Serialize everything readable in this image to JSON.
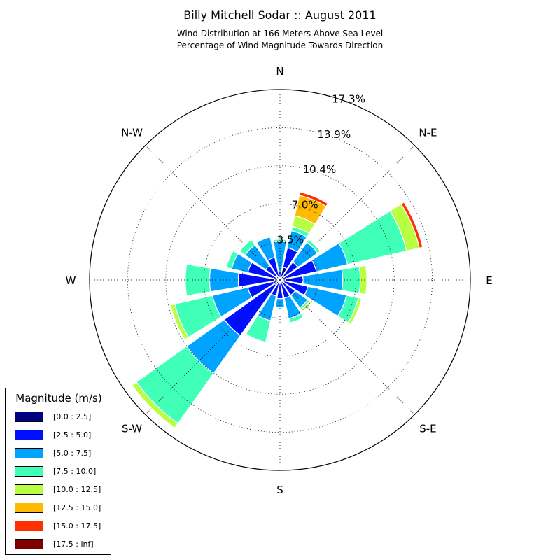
{
  "title": "Billy Mitchell Sodar :: August 2011",
  "subtitle": "Wind Distribution at 166 Meters Above Sea Level",
  "subtitle2": "Percentage of Wind Magnitude Towards Direction",
  "chart_data": {
    "type": "windrose",
    "title": "Billy Mitchell Sodar :: August 2011",
    "subtitle": "Wind Distribution at 166 Meters Above Sea Level / Percentage of Wind Magnitude Towards Direction",
    "directions": [
      "N",
      "NNE",
      "NE",
      "ENE",
      "E",
      "ESE",
      "SE",
      "SSE",
      "S",
      "SSW",
      "SW",
      "WSW",
      "W",
      "WNW",
      "NW",
      "NNW"
    ],
    "direction_labels": [
      {
        "label": "N",
        "angle": 0
      },
      {
        "label": "N-E",
        "angle": 45
      },
      {
        "label": "E",
        "angle": 90
      },
      {
        "label": "S-E",
        "angle": 135
      },
      {
        "label": "S",
        "angle": 180
      },
      {
        "label": "S-W",
        "angle": 225
      },
      {
        "label": "W",
        "angle": 270
      },
      {
        "label": "N-W",
        "angle": 315
      }
    ],
    "radial_ticks": [
      "3.5%",
      "7.0%",
      "10.4%",
      "13.9%",
      "17.3%"
    ],
    "radial_tick_values": [
      3.46,
      6.92,
      10.38,
      13.84,
      17.3
    ],
    "r_max": 17.3,
    "grid": true,
    "legend": {
      "title": "Magnitude (m/s)",
      "placement": "bottom-left",
      "bins": [
        "[0.0 : 2.5]",
        "[2.5 : 5.0]",
        "[5.0 : 7.5]",
        "[7.5 : 10.0]",
        "[10.0 : 12.5]",
        "[12.5 : 15.0]",
        "[15.0 : 17.5]",
        "[17.5 : inf]"
      ],
      "colors": [
        "#000080",
        "#0010ff",
        "#00a4ff",
        "#40ffb7",
        "#b7ff40",
        "#ffb900",
        "#ff3000",
        "#800000"
      ]
    },
    "series_cumulative": [
      [
        0.0,
        0.8,
        3.5,
        3.7,
        3.7,
        3.7,
        3.7,
        3.7
      ],
      [
        1.2,
        3.0,
        4.6,
        5.0,
        6.0,
        7.9,
        8.2,
        8.2
      ],
      [
        0.5,
        2.0,
        4.2,
        4.5,
        4.5,
        4.5,
        4.5,
        4.5
      ],
      [
        0.6,
        3.4,
        6.3,
        11.8,
        13.0,
        13.0,
        13.3,
        13.3
      ],
      [
        0.5,
        2.1,
        5.7,
        7.3,
        7.9,
        7.9,
        7.9,
        7.9
      ],
      [
        0.4,
        2.6,
        6.2,
        7.3,
        7.6,
        7.6,
        7.6,
        7.6
      ],
      [
        0.3,
        1.7,
        3.1,
        3.3,
        3.5,
        3.5,
        3.5,
        3.5
      ],
      [
        0.3,
        1.7,
        3.6,
        4.0,
        4.0,
        4.0,
        4.0,
        4.0
      ],
      [
        0.3,
        1.7,
        2.5,
        2.5,
        2.5,
        2.5,
        2.5,
        2.5
      ],
      [
        0.3,
        1.5,
        3.8,
        5.8,
        5.8,
        5.8,
        5.8,
        5.8
      ],
      [
        0.6,
        6.2,
        10.4,
        16.0,
        16.5,
        16.5,
        16.5,
        16.5
      ],
      [
        0.6,
        3.0,
        6.3,
        9.8,
        10.2,
        10.2,
        10.2,
        10.2
      ],
      [
        0.5,
        3.8,
        6.4,
        8.6,
        8.6,
        8.6,
        8.6,
        8.6
      ],
      [
        0.6,
        3.0,
        4.5,
        5.0,
        5.0,
        5.0,
        5.0,
        5.0
      ],
      [
        0.4,
        1.6,
        3.9,
        4.5,
        4.5,
        4.5,
        4.5,
        4.5
      ],
      [
        0.3,
        2.1,
        4.0,
        4.0,
        4.0,
        4.0,
        4.0,
        4.0
      ]
    ]
  }
}
